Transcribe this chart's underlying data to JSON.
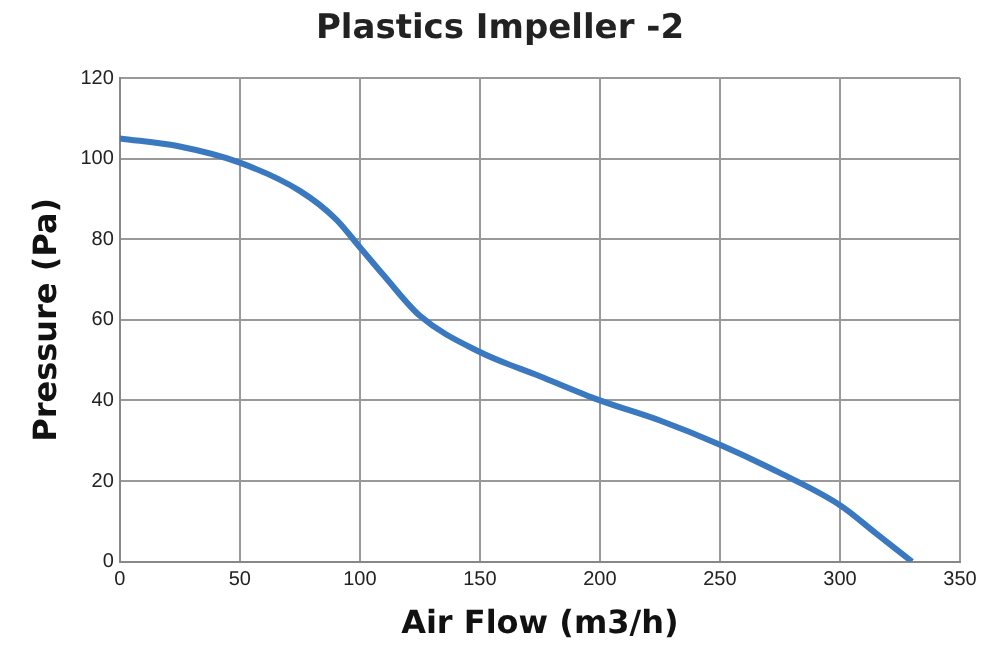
{
  "chart_data": {
    "type": "line",
    "title": "Plastics Impeller -2",
    "xlabel": "Air Flow (m3/h)",
    "ylabel": "Pressure (Pa)",
    "series": [
      {
        "color": "#3a78c0",
        "x": [
          0,
          25,
          50,
          75,
          90,
          100,
          110,
          125,
          150,
          175,
          200,
          225,
          250,
          275,
          300,
          315,
          330
        ],
        "values": [
          105,
          103,
          99,
          92,
          85,
          78,
          71,
          61,
          52,
          46,
          40,
          35,
          29,
          22,
          14,
          7,
          0
        ]
      }
    ],
    "xlim": [
      0,
      350
    ],
    "xticks": [
      0,
      50,
      100,
      150,
      200,
      250,
      300,
      350
    ],
    "ylim": [
      0,
      120
    ],
    "yticks": [
      0,
      20,
      40,
      60,
      80,
      100,
      120
    ],
    "grid": true,
    "legend": false,
    "marker": "none",
    "line_style": "solid"
  }
}
